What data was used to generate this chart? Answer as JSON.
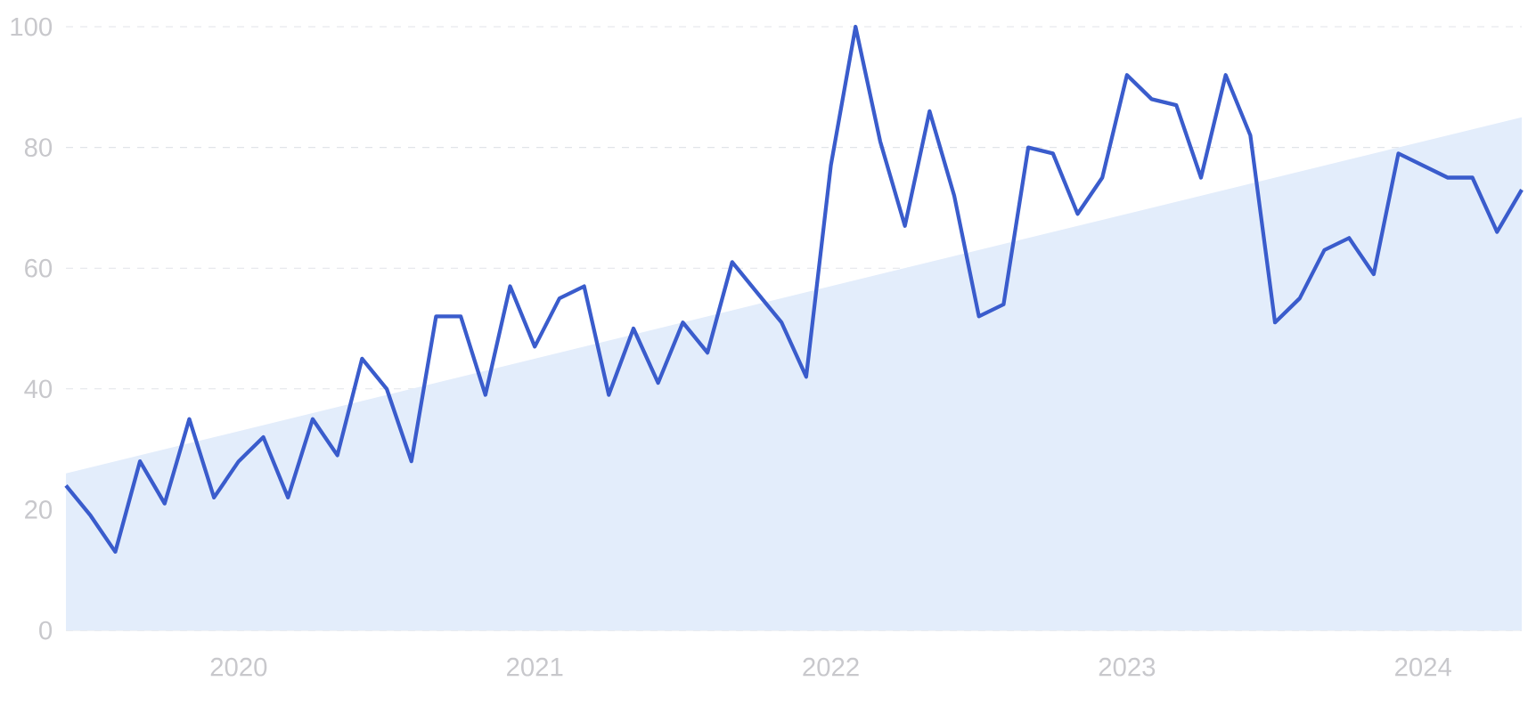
{
  "chart_data": {
    "type": "line",
    "x": [
      "2019-06",
      "2019-07",
      "2019-08",
      "2019-09",
      "2019-10",
      "2019-11",
      "2019-12",
      "2020-01",
      "2020-02",
      "2020-03",
      "2020-04",
      "2020-05",
      "2020-06",
      "2020-07",
      "2020-08",
      "2020-09",
      "2020-10",
      "2020-11",
      "2020-12",
      "2021-01",
      "2021-02",
      "2021-03",
      "2021-04",
      "2021-05",
      "2021-06",
      "2021-07",
      "2021-08",
      "2021-09",
      "2021-10",
      "2021-11",
      "2021-12",
      "2022-01",
      "2022-02",
      "2022-03",
      "2022-04",
      "2022-05",
      "2022-06",
      "2022-07",
      "2022-08",
      "2022-09",
      "2022-10",
      "2022-11",
      "2022-12",
      "2023-01",
      "2023-02",
      "2023-03",
      "2023-04",
      "2023-05",
      "2023-06",
      "2023-07",
      "2023-08",
      "2023-09",
      "2023-10",
      "2023-11",
      "2023-12",
      "2024-01",
      "2024-02",
      "2024-03",
      "2024-04",
      "2024-05"
    ],
    "series": [
      {
        "type": "area",
        "x": [
          "2019-06",
          "2024-05"
        ],
        "values": [
          26,
          85
        ],
        "color": "#e3edfb"
      },
      {
        "color": "#3a5ccc",
        "values": [
          24,
          19,
          13,
          28,
          21,
          35,
          22,
          28,
          32,
          22,
          35,
          29,
          45,
          40,
          28,
          52,
          52,
          39,
          57,
          47,
          55,
          57,
          39,
          50,
          41,
          51,
          46,
          61,
          56,
          51,
          42,
          77,
          100,
          81,
          67,
          86,
          72,
          52,
          54,
          80,
          79,
          69,
          75,
          92,
          88,
          87,
          75,
          92,
          82,
          51,
          55,
          63,
          65,
          59,
          79,
          77,
          75,
          75,
          66,
          73
        ]
      }
    ],
    "xlim": [
      "2019-06",
      "2024-05"
    ],
    "xticks": [
      {
        "value": "2020-01",
        "label": "2020"
      },
      {
        "value": "2021-01",
        "label": "2021"
      },
      {
        "value": "2022-01",
        "label": "2022"
      },
      {
        "value": "2023-01",
        "label": "2023"
      },
      {
        "value": "2024-01",
        "label": "2024"
      }
    ],
    "ylim": [
      0,
      100
    ],
    "yticks": [
      0,
      20,
      40,
      60,
      80,
      100
    ],
    "grid": "y"
  }
}
